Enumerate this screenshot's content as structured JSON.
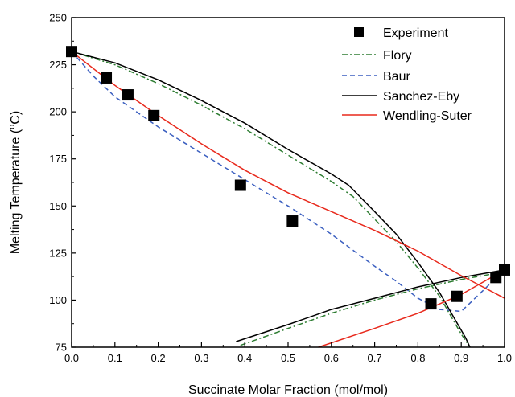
{
  "chart_data": {
    "type": "line",
    "xlabel": "Succinate Molar Fraction (mol/mol)",
    "ylabel_main": "Melting Temperature (",
    "ylabel_sup": "o",
    "ylabel_end": "C)",
    "xlim": [
      0.0,
      1.0
    ],
    "ylim": [
      75,
      250
    ],
    "xticks": [
      "0.0",
      "0.1",
      "0.2",
      "0.3",
      "0.4",
      "0.5",
      "0.6",
      "0.7",
      "0.8",
      "0.9",
      "1.0"
    ],
    "yticks": [
      "75",
      "100",
      "125",
      "150",
      "175",
      "200",
      "225",
      "250"
    ],
    "legend_position": "top-right",
    "grid": false,
    "series": [
      {
        "name": "Experiment",
        "kind": "marker",
        "color": "#000000",
        "points": [
          [
            0.0,
            232
          ],
          [
            0.08,
            218
          ],
          [
            0.13,
            209
          ],
          [
            0.19,
            198
          ],
          [
            0.39,
            161
          ],
          [
            0.51,
            142
          ],
          [
            0.83,
            98
          ],
          [
            0.89,
            102
          ],
          [
            0.98,
            112
          ],
          [
            1.0,
            116
          ]
        ]
      },
      {
        "name": "Flory",
        "kind": "line",
        "color": "#2e7d32",
        "dash": "dashdot",
        "segments": [
          [
            [
              0.0,
              232
            ],
            [
              0.1,
              225
            ],
            [
              0.2,
              215
            ],
            [
              0.3,
              203.5
            ],
            [
              0.4,
              191
            ],
            [
              0.5,
              177
            ],
            [
              0.6,
              163
            ],
            [
              0.65,
              155
            ],
            [
              0.7,
              143
            ],
            [
              0.75,
              131
            ],
            [
              0.8,
              117
            ],
            [
              0.85,
              102
            ],
            [
              0.88,
              90
            ],
            [
              0.9,
              82
            ],
            [
              0.92,
              75
            ]
          ],
          [
            [
              0.39,
              76
            ],
            [
              0.5,
              85
            ],
            [
              0.6,
              93
            ],
            [
              0.7,
              100
            ],
            [
              0.8,
              106
            ],
            [
              0.9,
              111
            ],
            [
              1.0,
              115
            ]
          ]
        ]
      },
      {
        "name": "Baur",
        "kind": "line",
        "color": "#3b5fc0",
        "dash": "dashed",
        "segments": [
          [
            [
              0.0,
              232
            ],
            [
              0.05,
              219
            ],
            [
              0.1,
              208
            ],
            [
              0.2,
              192
            ],
            [
              0.3,
              178
            ],
            [
              0.4,
              164
            ],
            [
              0.5,
              150
            ],
            [
              0.6,
              135
            ],
            [
              0.7,
              118
            ],
            [
              0.75,
              110
            ],
            [
              0.8,
              101
            ],
            [
              0.85,
              95
            ],
            [
              0.9,
              94
            ],
            [
              1.0,
              116
            ]
          ]
        ]
      },
      {
        "name": "Sanchez-Eby",
        "kind": "line",
        "color": "#000000",
        "dash": "solid",
        "segments": [
          [
            [
              0.0,
              232
            ],
            [
              0.1,
              226
            ],
            [
              0.2,
              217
            ],
            [
              0.3,
              206
            ],
            [
              0.4,
              194
            ],
            [
              0.5,
              180
            ],
            [
              0.6,
              167
            ],
            [
              0.64,
              161
            ],
            [
              0.7,
              147
            ],
            [
              0.75,
              135
            ],
            [
              0.8,
              120
            ],
            [
              0.85,
              104
            ],
            [
              0.88,
              92
            ],
            [
              0.91,
              80
            ],
            [
              0.92,
              75
            ]
          ],
          [
            [
              0.38,
              78
            ],
            [
              0.5,
              87
            ],
            [
              0.6,
              95
            ],
            [
              0.7,
              101
            ],
            [
              0.8,
              107
            ],
            [
              0.9,
              112
            ],
            [
              1.0,
              116
            ]
          ]
        ]
      },
      {
        "name": "Wendling-Suter",
        "kind": "line",
        "color": "#e8291c",
        "dash": "solid",
        "segments": [
          [
            [
              0.0,
              232
            ],
            [
              0.1,
              214
            ],
            [
              0.2,
              198
            ],
            [
              0.3,
              183
            ],
            [
              0.4,
              169
            ],
            [
              0.5,
              157
            ],
            [
              0.6,
              147
            ],
            [
              0.7,
              137
            ],
            [
              0.8,
              126
            ],
            [
              0.9,
              113
            ],
            [
              1.0,
              101
            ]
          ],
          [
            [
              0.57,
              75
            ],
            [
              0.7,
              85
            ],
            [
              0.8,
              93
            ],
            [
              0.9,
              103
            ],
            [
              1.0,
              116
            ]
          ]
        ]
      }
    ]
  }
}
